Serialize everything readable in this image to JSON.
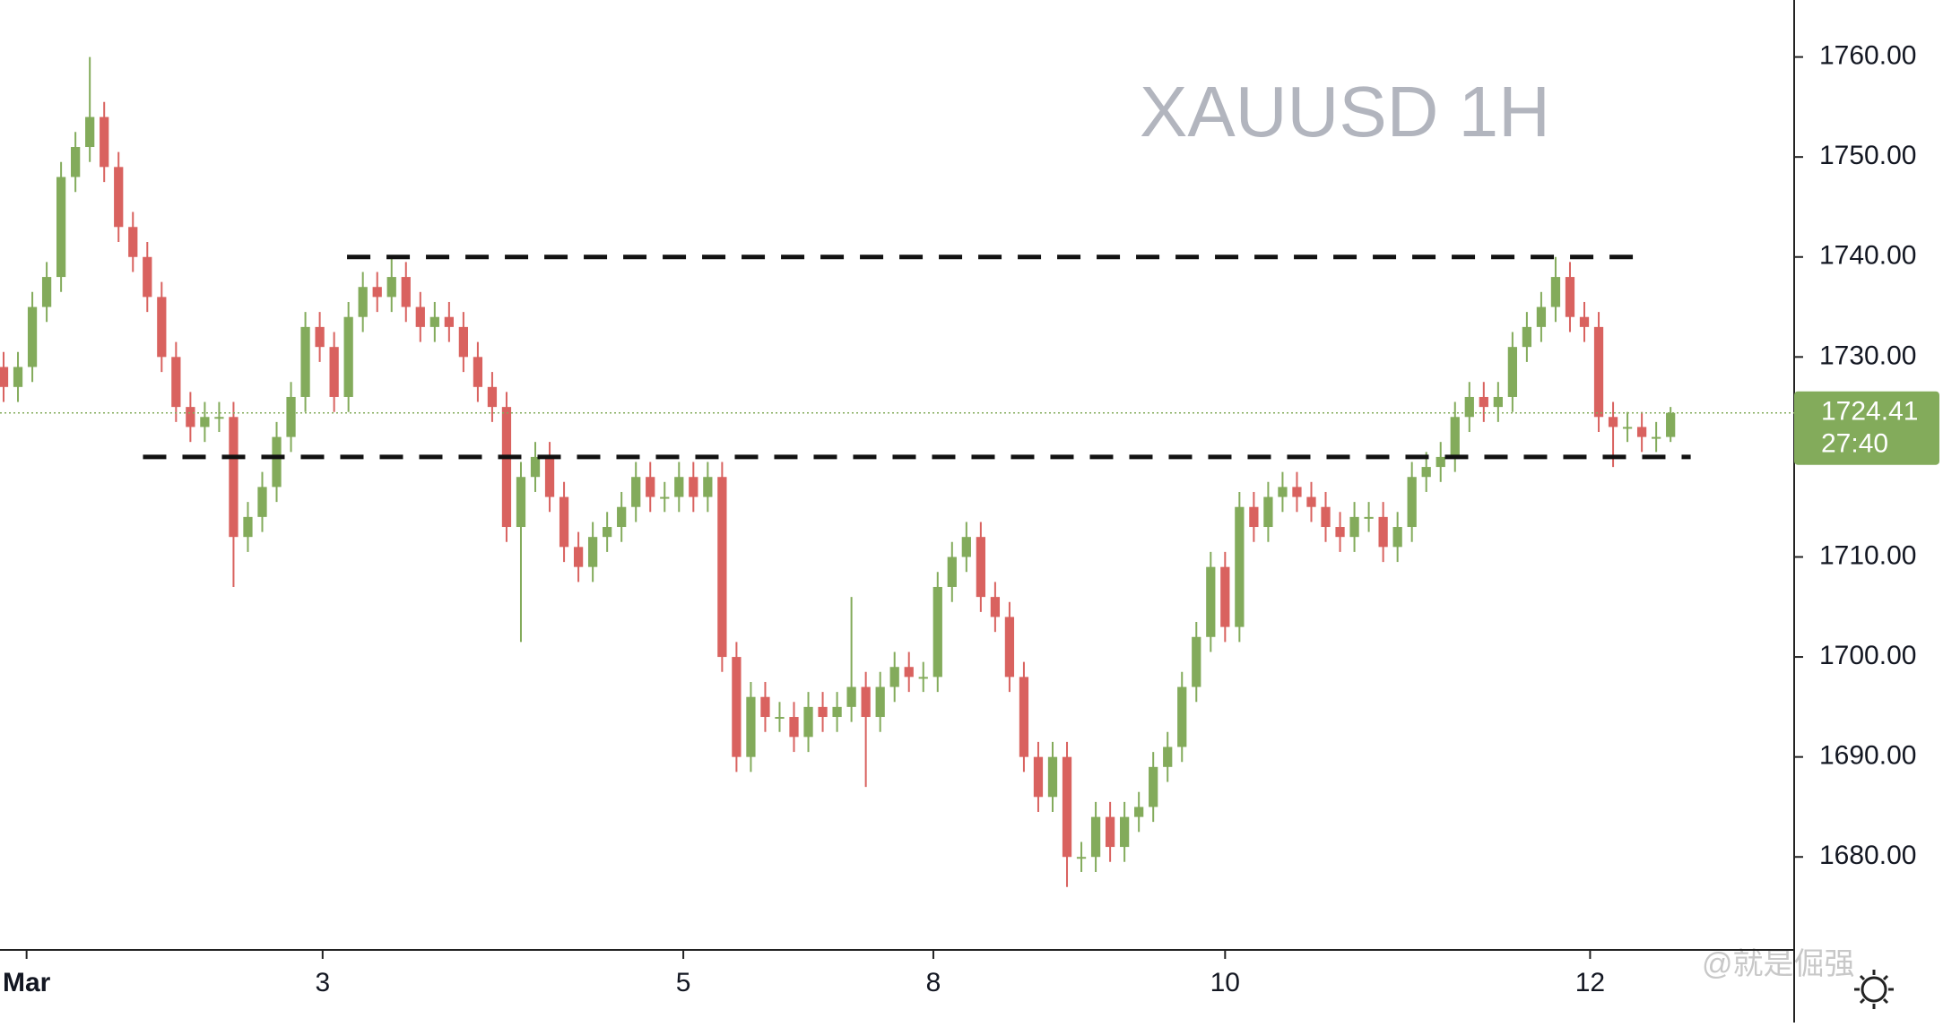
{
  "chart_data": {
    "type": "candlestick",
    "title": "XAUUSD 1H",
    "watermark": "@就是倔强",
    "countdown": "27:40",
    "up_color": "#83ab5b",
    "down_color": "#d9625f",
    "open": [
      1729,
      1727,
      1729,
      1735,
      1738,
      1748,
      1751,
      1754,
      1749,
      1743,
      1740,
      1736,
      1730,
      1725,
      1723,
      1724,
      1724,
      1712,
      1714,
      1717,
      1722,
      1726,
      1733,
      1731,
      1726,
      1734,
      1737,
      1736,
      1738,
      1735,
      1733,
      1734,
      1733,
      1730,
      1727,
      1725,
      1713,
      1718,
      1720,
      1716,
      1711,
      1709,
      1712,
      1713,
      1715,
      1718,
      1716,
      1716,
      1718,
      1716,
      1718,
      1700,
      1690,
      1696,
      1694,
      1694,
      1692,
      1695,
      1694,
      1695,
      1697,
      1694,
      1697,
      1699,
      1698,
      1698,
      1707,
      1710,
      1712,
      1706,
      1704,
      1698,
      1690,
      1686,
      1690,
      1680,
      1680,
      1684,
      1681,
      1684,
      1685,
      1689,
      1691,
      1697,
      1702,
      1709,
      1703,
      1715,
      1713,
      1716,
      1717,
      1716,
      1715,
      1713,
      1712,
      1714,
      1714,
      1711,
      1713,
      1718,
      1719,
      1720,
      1724,
      1726,
      1725,
      1726,
      1731,
      1733,
      1735,
      1738,
      1734,
      1733,
      1724,
      1723,
      1723,
      1722,
      1722
    ],
    "high": [
      1730.5,
      1730.5,
      1736.5,
      1739.5,
      1749.5,
      1752.5,
      1760,
      1755.5,
      1750.5,
      1744.5,
      1741.5,
      1737.5,
      1731.5,
      1726.5,
      1725.5,
      1725.5,
      1725.5,
      1715.5,
      1718.5,
      1723.5,
      1727.5,
      1734.5,
      1734.5,
      1732.5,
      1735.5,
      1738.5,
      1738.5,
      1740,
      1739.5,
      1736.5,
      1735.5,
      1735.5,
      1734.5,
      1731.5,
      1728.5,
      1726.5,
      1719.5,
      1721.5,
      1721.5,
      1717.5,
      1712.5,
      1713.5,
      1714.5,
      1716.5,
      1719.5,
      1719.5,
      1717.5,
      1719.5,
      1719.5,
      1719.5,
      1719.5,
      1701.5,
      1697.5,
      1697.5,
      1695.5,
      1695.5,
      1696.5,
      1696.5,
      1696.5,
      1706,
      1698.5,
      1698.5,
      1700.5,
      1700.5,
      1699.5,
      1708.5,
      1711.5,
      1713.5,
      1713.5,
      1707.5,
      1705.5,
      1699.5,
      1691.5,
      1691.5,
      1691.5,
      1681.5,
      1685.5,
      1685.5,
      1685.5,
      1686.5,
      1690.5,
      1692.5,
      1698.5,
      1703.5,
      1710.5,
      1710.5,
      1716.5,
      1716.5,
      1717.5,
      1718.5,
      1718.5,
      1717.5,
      1716.5,
      1714.5,
      1715.5,
      1715.5,
      1715.5,
      1714.5,
      1719.5,
      1720.5,
      1721.5,
      1725.5,
      1727.5,
      1727.5,
      1727.5,
      1732.5,
      1734.5,
      1736.5,
      1740,
      1739.5,
      1735.5,
      1734.5,
      1725.5,
      1724.5,
      1724.5,
      1723.5,
      1725
    ],
    "low": [
      1725.5,
      1725.5,
      1727.5,
      1733.5,
      1736.5,
      1746.5,
      1749.5,
      1747.5,
      1741.5,
      1738.5,
      1734.5,
      1728.5,
      1723.5,
      1721.5,
      1721.5,
      1722.5,
      1707,
      1710.5,
      1712.5,
      1715.5,
      1720.5,
      1724.5,
      1729.5,
      1724.5,
      1724.5,
      1732.5,
      1734.5,
      1734.5,
      1733.5,
      1731.5,
      1731.5,
      1731.5,
      1728.5,
      1725.5,
      1723.5,
      1711.5,
      1701.5,
      1716.5,
      1714.5,
      1709.5,
      1707.5,
      1707.5,
      1710.5,
      1711.5,
      1713.5,
      1714.5,
      1714.5,
      1714.5,
      1714.5,
      1714.5,
      1698.5,
      1688.5,
      1688.5,
      1692.5,
      1692.5,
      1690.5,
      1690.5,
      1692.5,
      1692.5,
      1693.5,
      1687,
      1692.5,
      1695.5,
      1696.5,
      1696.5,
      1696.5,
      1705.5,
      1708.5,
      1704.5,
      1702.5,
      1696.5,
      1688.5,
      1684.5,
      1684.5,
      1677,
      1678.5,
      1678.5,
      1679.5,
      1679.5,
      1682.5,
      1683.5,
      1687.5,
      1689.5,
      1695.5,
      1700.5,
      1701.5,
      1701.5,
      1711.5,
      1711.5,
      1714.5,
      1714.5,
      1713.5,
      1711.5,
      1710.5,
      1710.5,
      1712.5,
      1709.5,
      1709.5,
      1711.5,
      1716.5,
      1717.5,
      1718.5,
      1722.5,
      1723.5,
      1723.5,
      1724.5,
      1729.5,
      1731.5,
      1733.5,
      1732.5,
      1731.5,
      1722.5,
      1719,
      1721.5,
      1720.5,
      1720.5,
      1721.5
    ],
    "close": [
      1727,
      1729,
      1735,
      1738,
      1748,
      1751,
      1754,
      1749,
      1743,
      1740,
      1736,
      1730,
      1725,
      1723,
      1724,
      1724,
      1712,
      1714,
      1717,
      1722,
      1726,
      1733,
      1731,
      1726,
      1734,
      1737,
      1736,
      1738,
      1735,
      1733,
      1734,
      1733,
      1730,
      1727,
      1725,
      1713,
      1718,
      1720,
      1716,
      1711,
      1709,
      1712,
      1713,
      1715,
      1718,
      1716,
      1716,
      1718,
      1716,
      1718,
      1700,
      1690,
      1696,
      1694,
      1694,
      1692,
      1695,
      1694,
      1695,
      1697,
      1694,
      1697,
      1699,
      1698,
      1698,
      1707,
      1710,
      1712,
      1706,
      1704,
      1698,
      1690,
      1686,
      1690,
      1680,
      1680,
      1684,
      1681,
      1684,
      1685,
      1689,
      1691,
      1697,
      1702,
      1709,
      1703,
      1715,
      1713,
      1716,
      1717,
      1716,
      1715,
      1713,
      1712,
      1714,
      1714,
      1711,
      1713,
      1718,
      1719,
      1720,
      1724,
      1726,
      1725,
      1726,
      1731,
      1733,
      1735,
      1738,
      1734,
      1733,
      1724,
      1723,
      1723,
      1722,
      1722,
      1724.41
    ],
    "xlim": [
      -0.25,
      124.6
    ],
    "xticks": [
      {
        "value": 1.6,
        "label": "Mar"
      },
      {
        "value": 22.2,
        "label": "3"
      },
      {
        "value": 47.3,
        "label": "5"
      },
      {
        "value": 64.7,
        "label": "8"
      },
      {
        "value": 85,
        "label": "10"
      },
      {
        "value": 110.4,
        "label": "12"
      }
    ],
    "ylim": [
      1670.7,
      1765.7
    ],
    "yticks": [
      {
        "value": 1680,
        "label": "1680.00"
      },
      {
        "value": 1690,
        "label": "1690.00"
      },
      {
        "value": 1700,
        "label": "1700.00"
      },
      {
        "value": 1710,
        "label": "1710.00"
      },
      {
        "value": 1720,
        "label": "1720.00"
      },
      {
        "value": 1730,
        "label": "1730.00"
      },
      {
        "value": 1740,
        "label": "1740.00"
      },
      {
        "value": 1750,
        "label": "1750.00"
      },
      {
        "value": 1760,
        "label": "1760.00"
      }
    ],
    "levels": [
      {
        "y": 1740,
        "x": [
          23.9,
          114.4
        ]
      },
      {
        "y": 1720,
        "x": [
          9.7,
          117.4
        ]
      }
    ]
  }
}
